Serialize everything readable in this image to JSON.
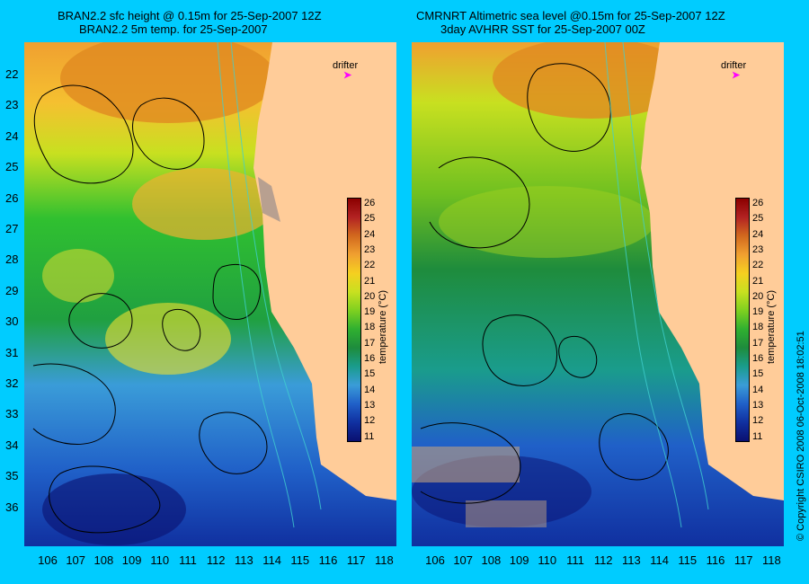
{
  "left_panel": {
    "title_line1": "BRAN2.2 sfc height @ 0.15m for 25-Sep-2007 12Z",
    "title_line2": "BRAN2.2 5m temp. for 25-Sep-2007"
  },
  "right_panel": {
    "title_line1": "CMRNRT Altimetric sea level  @0.15m  for 25-Sep-2007 12Z",
    "title_line2": "3day AVHRR SST for 25-Sep-2007 00Z"
  },
  "latitudes": [
    "22",
    "23",
    "24",
    "25",
    "26",
    "27",
    "28",
    "29",
    "30",
    "31",
    "32",
    "33",
    "34",
    "35",
    "36"
  ],
  "longitudes": [
    "106",
    "107",
    "108",
    "109",
    "110",
    "111",
    "112",
    "113",
    "114",
    "115",
    "116",
    "117",
    "118"
  ],
  "drifter_label": "drifter",
  "drifter_marker": "➤",
  "colorbar": {
    "ticks": [
      "26",
      "25",
      "24",
      "23",
      "22",
      "21",
      "20",
      "19",
      "18",
      "17",
      "16",
      "15",
      "14",
      "13",
      "12",
      "11"
    ],
    "unit": "temperature (°C)",
    "colors": [
      "#8b0000",
      "#b22222",
      "#d2691e",
      "#f0a030",
      "#f5d020",
      "#c8e020",
      "#7ed020",
      "#30b030",
      "#1e8c3c",
      "#1a9c8c",
      "#3a9cd8",
      "#2060c8",
      "#1030a0",
      "#0a1070"
    ]
  },
  "copyright": "© Copyright CSIRO 2008   06-Oct-2008 18:02:51",
  "colors": {
    "background": "#00ccff",
    "land": "#ffcc99"
  }
}
